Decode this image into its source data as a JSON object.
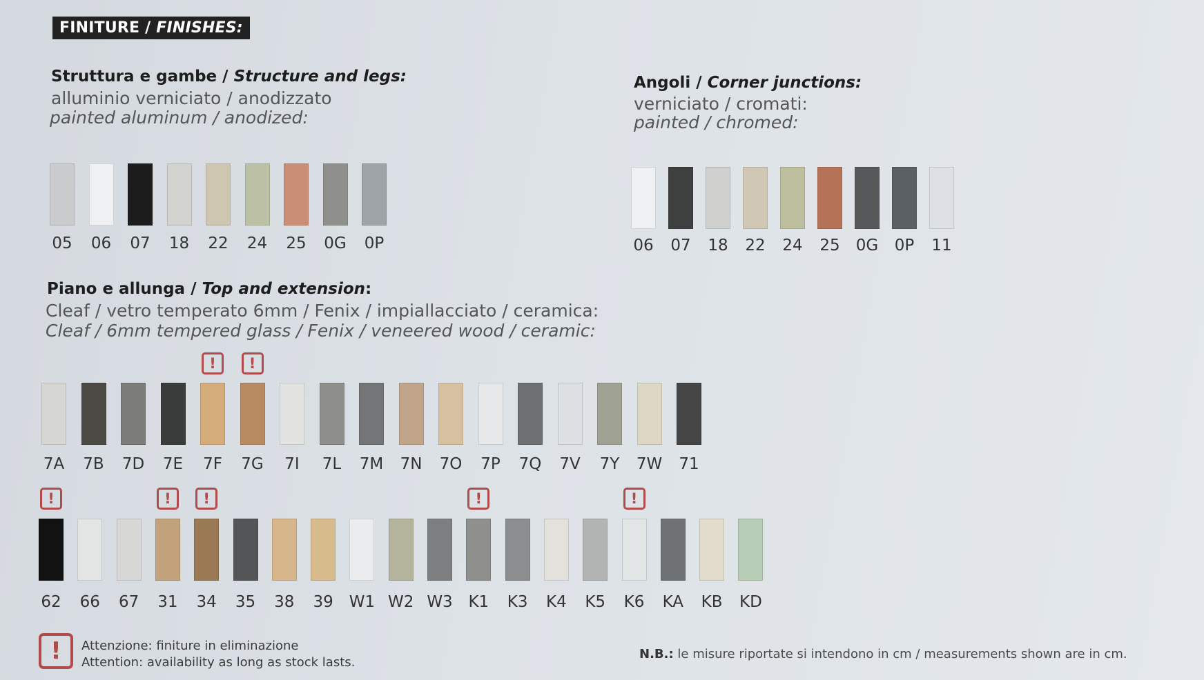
{
  "header": {
    "badge_it": "FINITURE",
    "badge_sep": " / ",
    "badge_en": "FINISHES:"
  },
  "structure": {
    "title_it": "Struttura e  gambe",
    "title_sep": " / ",
    "title_en": "Structure and legs:",
    "line1": "alluminio verniciato / anodizzato",
    "line2": "painted aluminum / anodized:",
    "swatches": [
      {
        "code": "05",
        "color": "#c9cbcc"
      },
      {
        "code": "06",
        "color": "#eef0f2"
      },
      {
        "code": "07",
        "color": "#1c1c1c"
      },
      {
        "code": "18",
        "color": "#d2d2cf"
      },
      {
        "code": "22",
        "color": "#cfc6b2"
      },
      {
        "code": "24",
        "color": "#bcc0a4"
      },
      {
        "code": "25",
        "color": "#c98e73"
      },
      {
        "code": "0G",
        "color": "#8f908c"
      },
      {
        "code": "0P",
        "color": "#9da3a7"
      }
    ]
  },
  "corners": {
    "title_it": "Angoli",
    "title_sep": " / ",
    "title_en": "Corner junctions:",
    "line1": "verniciato / cromati:",
    "line2": "painted / chromed:",
    "swatches": [
      {
        "code": "06",
        "color": "#eef0f2"
      },
      {
        "code": "07",
        "color": "#3e3f3f"
      },
      {
        "code": "18",
        "color": "#d0d1cf"
      },
      {
        "code": "22",
        "color": "#d0c8b4"
      },
      {
        "code": "24",
        "color": "#bdbf9f"
      },
      {
        "code": "25",
        "color": "#b57256"
      },
      {
        "code": "0G",
        "color": "#565859"
      },
      {
        "code": "0P",
        "color": "#5a6064"
      },
      {
        "code": "11",
        "color": "#dde1e5"
      }
    ]
  },
  "top": {
    "title_it": "Piano e allunga",
    "title_sep": " / ",
    "title_en": "Top and extension",
    "title_colon": ":",
    "line1": "Cleaf / vetro temperato 6mm / Fenix / impiallacciato / ceramica:",
    "line2": "Cleaf / 6mm tempered glass / Fenix / veneered wood / ceramic:",
    "row1": [
      {
        "code": "7A",
        "color": "#d6d7d2",
        "warn": false
      },
      {
        "code": "7B",
        "color": "#4d4a46",
        "warn": false
      },
      {
        "code": "7D",
        "color": "#7c7d79",
        "warn": false
      },
      {
        "code": "7E",
        "color": "#3a3b3b",
        "warn": false
      },
      {
        "code": "7F",
        "color": "#d4ad7a",
        "warn": true
      },
      {
        "code": "7G",
        "color": "#b88a62",
        "warn": true
      },
      {
        "code": "7I",
        "color": "#e2e3e0",
        "warn": false
      },
      {
        "code": "7L",
        "color": "#8e8f8b",
        "warn": false
      },
      {
        "code": "7M",
        "color": "#737576",
        "warn": false
      },
      {
        "code": "7N",
        "color": "#c0a58a",
        "warn": false
      },
      {
        "code": "7O",
        "color": "#d7c09f",
        "warn": false
      },
      {
        "code": "7P",
        "color": "#e6e8ea",
        "warn": false
      },
      {
        "code": "7Q",
        "color": "#6d6f70",
        "warn": false
      },
      {
        "code": "7V",
        "color": "#dde0e2",
        "warn": false
      },
      {
        "code": "7Y",
        "color": "#9fa193",
        "warn": false
      },
      {
        "code": "7W",
        "color": "#ddd7c6",
        "warn": false
      },
      {
        "code": "71",
        "color": "#454545",
        "warn": false
      }
    ],
    "row2": [
      {
        "code": "62",
        "color": "#121212",
        "warn": true
      },
      {
        "code": "66",
        "color": "#e3e4e4",
        "warn": false
      },
      {
        "code": "67",
        "color": "#d7d8d6",
        "warn": false
      },
      {
        "code": "31",
        "color": "#c2a27a",
        "warn": true
      },
      {
        "code": "34",
        "color": "#9a7955",
        "warn": true
      },
      {
        "code": "35",
        "color": "#545556",
        "warn": false
      },
      {
        "code": "38",
        "color": "#d6b68a",
        "warn": false
      },
      {
        "code": "39",
        "color": "#d8bb8d",
        "warn": false
      },
      {
        "code": "W1",
        "color": "#eaecee",
        "warn": false
      },
      {
        "code": "W2",
        "color": "#b3b49b",
        "warn": false
      },
      {
        "code": "W3",
        "color": "#7c7e80",
        "warn": false
      },
      {
        "code": "K1",
        "color": "#8f908e",
        "warn": true
      },
      {
        "code": "K3",
        "color": "#8b8d8e",
        "warn": false
      },
      {
        "code": "K4",
        "color": "#e2e1db",
        "warn": false
      },
      {
        "code": "K5",
        "color": "#b2b4b3",
        "warn": false
      },
      {
        "code": "K6",
        "color": "#e1e5e6",
        "warn": true
      },
      {
        "code": "KA",
        "color": "#6f7275",
        "warn": false
      },
      {
        "code": "KB",
        "color": "#e1dccb",
        "warn": false
      },
      {
        "code": "KD",
        "color": "#b7ccb4",
        "warn": false
      }
    ]
  },
  "warning_glyph": "!",
  "legend": {
    "line1": "Attenzione: finiture in eliminazione",
    "line2": "Attention: availability as long as stock lasts."
  },
  "nb": {
    "label": "N.B.:",
    "text": " le misure riportate si intendono in cm / measurements shown are in cm."
  }
}
